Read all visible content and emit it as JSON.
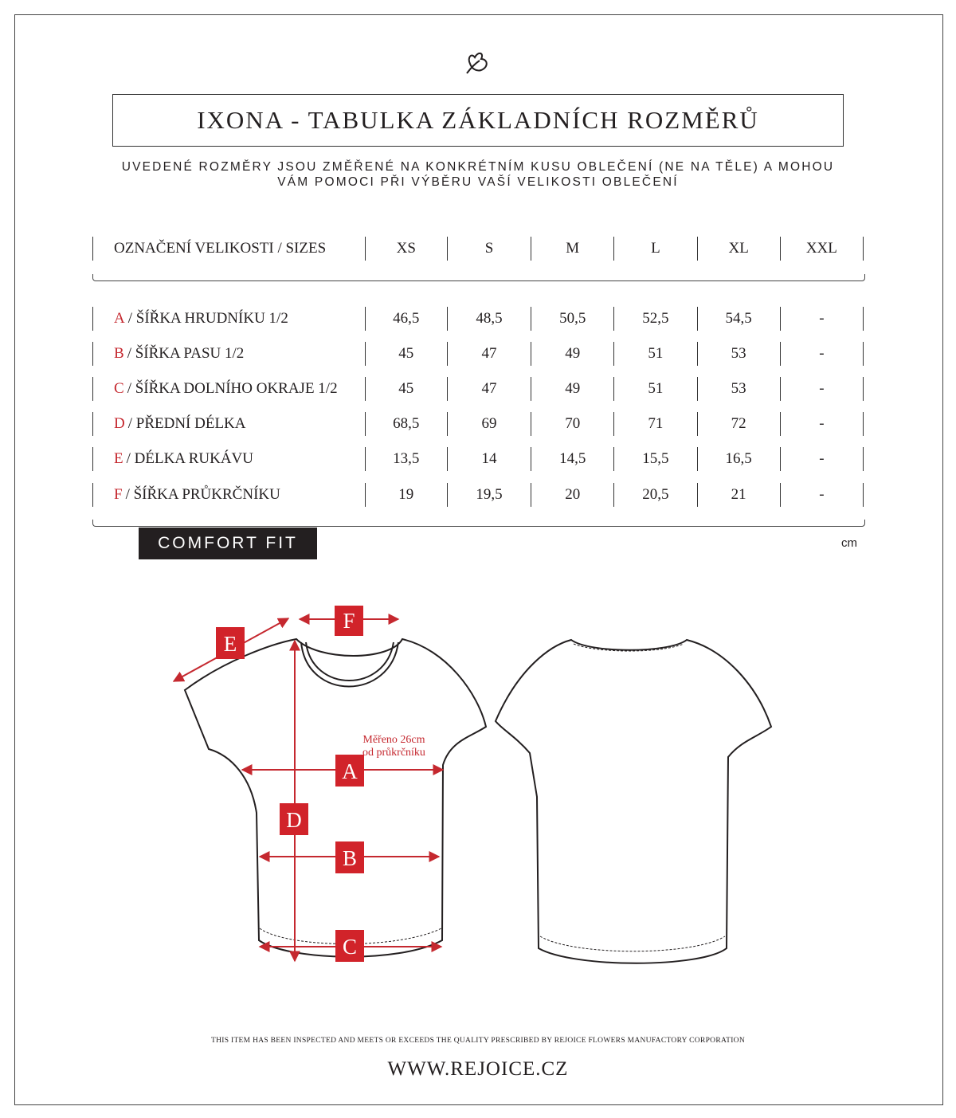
{
  "title": "IXONA - TABULKA ZÁKLADNÍCH ROZMĚRŮ",
  "subtitle_line1": "UVEDENÉ ROZMĚRY JSOU ZMĚŘENÉ NA KONKRÉTNÍM KUSU OBLEČENÍ (NE NA TĚLE) A MOHOU",
  "subtitle_line2": "VÁM POMOCI PŘI VÝBĚRU VAŠÍ VELIKOSTI OBLEČENÍ",
  "table": {
    "header": [
      "OZNAČENÍ VELIKOSTI / SIZES",
      "XS",
      "S",
      "M",
      "L",
      "XL",
      "XXL"
    ],
    "rows": [
      {
        "letter": "A",
        "label": "/ ŠÍŘKA HRUDNÍKU 1/2",
        "values": [
          "46,5",
          "48,5",
          "50,5",
          "52,5",
          "54,5",
          "-"
        ]
      },
      {
        "letter": "B",
        "label": "/ ŠÍŘKA PASU 1/2",
        "values": [
          "45",
          "47",
          "49",
          "51",
          "53",
          "-"
        ]
      },
      {
        "letter": "C",
        "label": "/ ŠÍŘKA DOLNÍHO OKRAJE 1/2",
        "values": [
          "45",
          "47",
          "49",
          "51",
          "53",
          "-"
        ]
      },
      {
        "letter": "D",
        "label": "/ PŘEDNÍ  DÉLKA",
        "values": [
          "68,5",
          "69",
          "70",
          "71",
          "72",
          "-"
        ]
      },
      {
        "letter": "E",
        "label": "/ DÉLKA RUKÁVU",
        "values": [
          "13,5",
          "14",
          "14,5",
          "15,5",
          "16,5",
          "-"
        ]
      },
      {
        "letter": "F",
        "label": "/ ŠÍŘKA PRŮKRČNÍKU",
        "values": [
          "19",
          "19,5",
          "20",
          "20,5",
          "21",
          "-"
        ]
      }
    ]
  },
  "fit_badge": "COMFORT FIT",
  "unit": "cm",
  "diagram": {
    "labels": [
      "A",
      "B",
      "C",
      "D",
      "E",
      "F"
    ],
    "note_line1": "Měřeno 26cm",
    "note_line2": "od průkrčníku"
  },
  "quality_text": "THIS ITEM HAS BEEN INSPECTED AND MEETS OR EXCEEDS THE QUALITY PRESCRIBED BY REJOICE FLOWERS MANUFACTORY CORPORATION",
  "website": "WWW.REJOICE.CZ",
  "colors": {
    "accent": "#c5282f",
    "text": "#231f20"
  }
}
